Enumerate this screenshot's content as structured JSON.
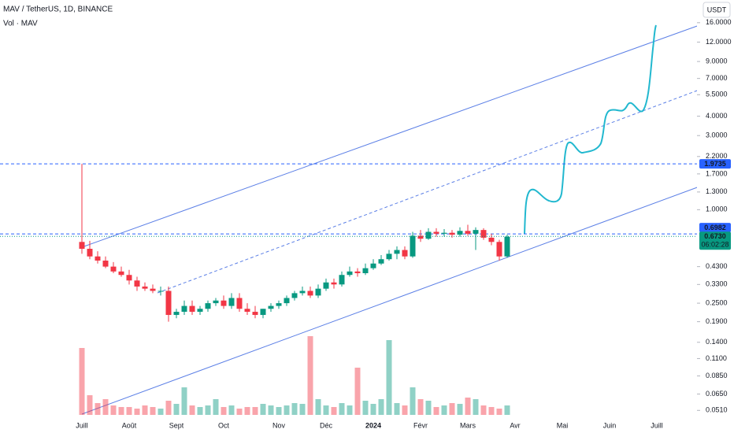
{
  "chart_data": {
    "type": "candlestick",
    "title": "MAV / TetherUS, 1D, BINANCE",
    "subtitle": "Vol · MAV",
    "currency": "USDT",
    "log_scale": true,
    "grid": false,
    "up_color": "#089981",
    "down_color": "#f23645",
    "ylim": [
      0.045,
      22.4
    ],
    "yticks": [
      {
        "value": 16,
        "label": "16.0000"
      },
      {
        "value": 12,
        "label": "12.0000"
      },
      {
        "value": 9,
        "label": "9.0000"
      },
      {
        "value": 7,
        "label": "7.0000"
      },
      {
        "value": 5.5,
        "label": "5.5000"
      },
      {
        "value": 4,
        "label": "4.0000"
      },
      {
        "value": 3,
        "label": "3.0000"
      },
      {
        "value": 2.2,
        "label": "2.2000"
      },
      {
        "value": 1.7,
        "label": "1.7000"
      },
      {
        "value": 1.3,
        "label": "1.3000"
      },
      {
        "value": 1,
        "label": "1.0000"
      },
      {
        "value": 0.43,
        "label": "0.4300"
      },
      {
        "value": 0.33,
        "label": "0.3300"
      },
      {
        "value": 0.25,
        "label": "0.2500"
      },
      {
        "value": 0.19,
        "label": "0.1900"
      },
      {
        "value": 0.14,
        "label": "0.1400"
      },
      {
        "value": 0.11,
        "label": "0.1100"
      },
      {
        "value": 0.085,
        "label": "0.0850"
      },
      {
        "value": 0.065,
        "label": "0.0650"
      },
      {
        "value": 0.051,
        "label": "0.0510"
      }
    ],
    "categories": [
      "Juill",
      null,
      null,
      null,
      null,
      null,
      "Août",
      null,
      null,
      null,
      null,
      null,
      "Sept",
      null,
      null,
      null,
      null,
      null,
      "Oct",
      null,
      null,
      null,
      null,
      null,
      null,
      "Nov",
      null,
      null,
      null,
      null,
      null,
      "Déc",
      null,
      null,
      null,
      null,
      null,
      "2024",
      null,
      null,
      null,
      null,
      null,
      "Févr",
      null,
      null,
      null,
      null,
      null,
      "Mars",
      null,
      null,
      null,
      null,
      null,
      "Avr",
      null,
      null,
      null,
      null,
      null,
      "Mai",
      null,
      null,
      null,
      null,
      null,
      "Juin",
      null,
      null,
      null,
      null,
      null,
      "Juill"
    ],
    "open": [
      0.62,
      0.56,
      0.5,
      0.47,
      0.43,
      0.4,
      0.38,
      0.35,
      0.32,
      0.31,
      0.3,
      0.3,
      0.21,
      0.22,
      0.24,
      0.22,
      0.23,
      0.25,
      0.26,
      0.24,
      0.27,
      0.23,
      0.22,
      0.21,
      0.23,
      0.24,
      0.25,
      0.27,
      0.29,
      0.3,
      0.28,
      0.31,
      0.34,
      0.33,
      0.38,
      0.4,
      0.39,
      0.42,
      0.45,
      0.48,
      0.52,
      0.55,
      0.5,
      0.68,
      0.65,
      0.72,
      0.7,
      0.71,
      0.69,
      0.73,
      0.7,
      0.74,
      0.66,
      0.62,
      0.5,
      null,
      null,
      null,
      null,
      null,
      null,
      null,
      null,
      null,
      null,
      null,
      null,
      null,
      null,
      null,
      null,
      null,
      null,
      null
    ],
    "high": [
      1.9735,
      0.63,
      0.54,
      0.5,
      0.46,
      0.43,
      0.41,
      0.37,
      0.34,
      0.33,
      0.32,
      0.32,
      0.23,
      0.26,
      0.26,
      0.24,
      0.26,
      0.27,
      0.28,
      0.29,
      0.29,
      0.25,
      0.24,
      0.23,
      0.25,
      0.26,
      0.28,
      0.3,
      0.32,
      0.32,
      0.33,
      0.36,
      0.36,
      0.4,
      0.43,
      0.42,
      0.45,
      0.48,
      0.51,
      0.55,
      0.58,
      0.58,
      0.72,
      0.74,
      0.76,
      0.76,
      0.75,
      0.74,
      0.77,
      0.8,
      0.77,
      0.76,
      0.7,
      0.64,
      0.69,
      null,
      null,
      null,
      null,
      null,
      null,
      null,
      null,
      null,
      null,
      null,
      null,
      null,
      null,
      null,
      null,
      null,
      null,
      null
    ],
    "low": [
      0.52,
      0.48,
      0.45,
      0.42,
      0.39,
      0.37,
      0.33,
      0.3,
      0.3,
      0.29,
      0.28,
      0.19,
      0.2,
      0.21,
      0.21,
      0.21,
      0.22,
      0.24,
      0.23,
      0.23,
      0.22,
      0.21,
      0.2,
      0.2,
      0.22,
      0.23,
      0.24,
      0.26,
      0.28,
      0.27,
      0.27,
      0.3,
      0.31,
      0.32,
      0.37,
      0.37,
      0.38,
      0.41,
      0.44,
      0.47,
      0.48,
      0.48,
      0.49,
      0.62,
      0.64,
      0.67,
      0.67,
      0.66,
      0.67,
      0.68,
      0.55,
      0.64,
      0.59,
      0.47,
      0.49,
      null,
      null,
      null,
      null,
      null,
      null,
      null,
      null,
      null,
      null,
      null,
      null,
      null,
      null,
      null,
      null,
      null,
      null,
      null
    ],
    "close": [
      0.56,
      0.5,
      0.47,
      0.43,
      0.4,
      0.38,
      0.35,
      0.32,
      0.31,
      0.3,
      0.3,
      0.21,
      0.22,
      0.24,
      0.22,
      0.23,
      0.25,
      0.26,
      0.24,
      0.27,
      0.23,
      0.22,
      0.21,
      0.23,
      0.24,
      0.25,
      0.27,
      0.29,
      0.3,
      0.28,
      0.31,
      0.34,
      0.33,
      0.38,
      0.4,
      0.39,
      0.42,
      0.45,
      0.48,
      0.52,
      0.55,
      0.5,
      0.68,
      0.65,
      0.72,
      0.7,
      0.71,
      0.69,
      0.73,
      0.7,
      0.74,
      0.66,
      0.62,
      0.5,
      0.67,
      null,
      null,
      null,
      null,
      null,
      null,
      null,
      null,
      null,
      null,
      null,
      null,
      null,
      null,
      null,
      null,
      null,
      null,
      null
    ],
    "volume": [
      85,
      25,
      15,
      20,
      12,
      10,
      10,
      8,
      12,
      10,
      8,
      18,
      14,
      35,
      12,
      10,
      12,
      20,
      10,
      12,
      8,
      10,
      10,
      14,
      12,
      10,
      12,
      15,
      14,
      100,
      20,
      12,
      10,
      15,
      12,
      60,
      18,
      14,
      20,
      95,
      15,
      12,
      35,
      20,
      18,
      10,
      12,
      15,
      14,
      22,
      20,
      12,
      10,
      8,
      12,
      null,
      null,
      null,
      null,
      null,
      null,
      null,
      null,
      null,
      null,
      null,
      null,
      null,
      null,
      null,
      null,
      null,
      null,
      null
    ],
    "volume_lim": [
      0,
      100
    ],
    "price_lines": [
      {
        "value": 1.9735,
        "color": "#2962ff"
      },
      {
        "value": 0.6982,
        "color": "#2962ff"
      }
    ],
    "last_price": {
      "value": 0.673,
      "label": "0.6730",
      "countdown": "06:02:28",
      "color": "#089981"
    }
  }
}
